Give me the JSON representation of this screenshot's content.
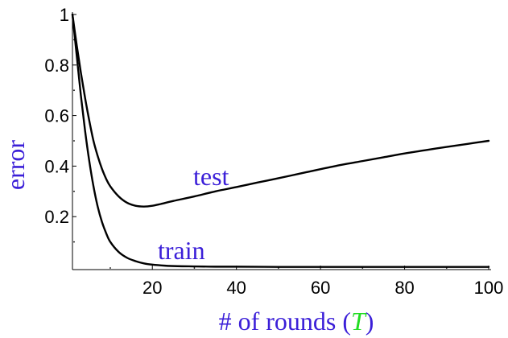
{
  "chart_data": {
    "type": "line",
    "xlabel_prefix": "# of rounds (",
    "xlabel_var": "T",
    "xlabel_suffix": ")",
    "ylabel": "error",
    "xlim": [
      1,
      100
    ],
    "ylim": [
      0,
      1
    ],
    "x_ticks": [
      20,
      40,
      60,
      80,
      100
    ],
    "y_ticks": [
      0.2,
      0.4,
      0.6,
      0.8,
      1
    ],
    "y_tick_labels": [
      "0.2",
      "0.4",
      "0.6",
      "0.8",
      "1"
    ],
    "x_tick_labels": [
      "20",
      "40",
      "60",
      "80",
      "100"
    ],
    "grid": false,
    "colors": {
      "label": "#3b1fd8",
      "variable": "#22dd22",
      "line": "#000000"
    },
    "series": [
      {
        "name": "test",
        "x": [
          1,
          2,
          3,
          4,
          5,
          6,
          7,
          8,
          9,
          10,
          12,
          14,
          16,
          18,
          20,
          22,
          25,
          30,
          35,
          40,
          45,
          50,
          55,
          60,
          65,
          70,
          75,
          80,
          85,
          90,
          95,
          100
        ],
        "y": [
          1.0,
          0.88,
          0.77,
          0.67,
          0.58,
          0.5,
          0.44,
          0.39,
          0.35,
          0.32,
          0.28,
          0.255,
          0.243,
          0.24,
          0.243,
          0.25,
          0.262,
          0.28,
          0.3,
          0.317,
          0.335,
          0.352,
          0.37,
          0.388,
          0.405,
          0.42,
          0.435,
          0.45,
          0.463,
          0.476,
          0.488,
          0.5
        ]
      },
      {
        "name": "train",
        "x": [
          1,
          2,
          3,
          4,
          5,
          6,
          7,
          8,
          9,
          10,
          12,
          14,
          16,
          18,
          20,
          23,
          26,
          30,
          35,
          40,
          50,
          60,
          70,
          80,
          90,
          100
        ],
        "y": [
          1.0,
          0.84,
          0.68,
          0.54,
          0.42,
          0.32,
          0.24,
          0.18,
          0.135,
          0.1,
          0.06,
          0.037,
          0.024,
          0.015,
          0.01,
          0.006,
          0.004,
          0.003,
          0.002,
          0.002,
          0.001,
          0.001,
          0.001,
          0.001,
          0.001,
          0.001
        ]
      }
    ]
  }
}
